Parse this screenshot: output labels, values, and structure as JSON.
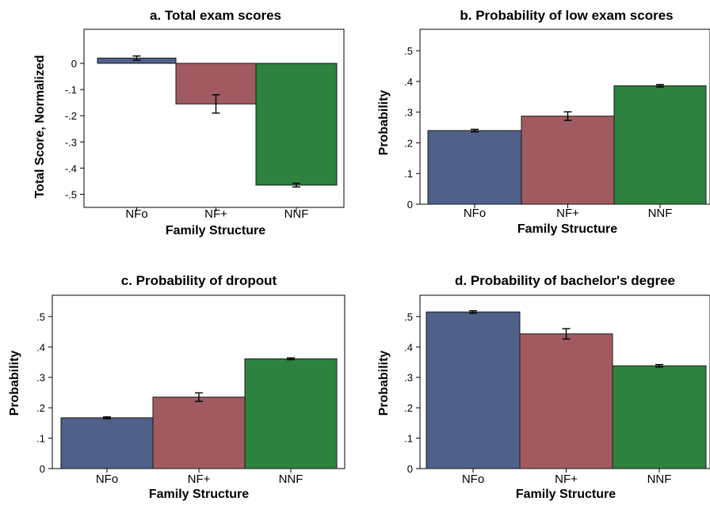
{
  "chart_data": [
    {
      "type": "bar",
      "title": "a. Total exam scores",
      "xlabel": "Family Structure",
      "ylabel": "Total Score, Normalized",
      "categories": [
        "NFo",
        "NF+",
        "NNF"
      ],
      "values": [
        0.02,
        -0.155,
        -0.465
      ],
      "error_low": [
        0.012,
        -0.19,
        -0.472
      ],
      "error_high": [
        0.028,
        -0.12,
        -0.458
      ],
      "ylim": [
        -0.55,
        0.13
      ],
      "yticks": [
        0,
        -0.1,
        -0.2,
        -0.3,
        -0.4,
        -0.5
      ],
      "ytick_labels": [
        "0",
        "-.1",
        "-.2",
        "-.3",
        "-.4",
        "-.5"
      ],
      "colors": [
        "#4f6089",
        "#a15b60",
        "#2d823f"
      ]
    },
    {
      "type": "bar",
      "title": "b. Probability of low exam scores",
      "xlabel": "Family Structure",
      "ylabel": "Probability",
      "categories": [
        "NFo",
        "NF+",
        "NNF"
      ],
      "values": [
        0.24,
        0.287,
        0.386
      ],
      "error_low": [
        0.236,
        0.273,
        0.382
      ],
      "error_high": [
        0.244,
        0.301,
        0.39
      ],
      "ylim": [
        0,
        0.57
      ],
      "yticks": [
        0,
        0.1,
        0.2,
        0.3,
        0.4,
        0.5
      ],
      "ytick_labels": [
        "0",
        ".1",
        ".2",
        ".3",
        ".4",
        ".5"
      ],
      "colors": [
        "#4f6089",
        "#a15b60",
        "#2d823f"
      ]
    },
    {
      "type": "bar",
      "title": "c. Probability of dropout",
      "xlabel": "Family Structure",
      "ylabel": "Probability",
      "categories": [
        "NFo",
        "NF+",
        "NNF"
      ],
      "values": [
        0.167,
        0.235,
        0.361
      ],
      "error_low": [
        0.164,
        0.221,
        0.358
      ],
      "error_high": [
        0.17,
        0.249,
        0.364
      ],
      "ylim": [
        0,
        0.57
      ],
      "yticks": [
        0,
        0.1,
        0.2,
        0.3,
        0.4,
        0.5
      ],
      "ytick_labels": [
        "0",
        ".1",
        ".2",
        ".3",
        ".4",
        ".5"
      ],
      "colors": [
        "#4f6089",
        "#a15b60",
        "#2d823f"
      ]
    },
    {
      "type": "bar",
      "title": "d. Probability of bachelor's degree",
      "xlabel": "Family Structure",
      "ylabel": "Probability",
      "categories": [
        "NFo",
        "NF+",
        "NNF"
      ],
      "values": [
        0.515,
        0.443,
        0.338
      ],
      "error_low": [
        0.511,
        0.426,
        0.334
      ],
      "error_high": [
        0.519,
        0.46,
        0.342
      ],
      "ylim": [
        0,
        0.57
      ],
      "yticks": [
        0,
        0.1,
        0.2,
        0.3,
        0.4,
        0.5
      ],
      "ytick_labels": [
        "0",
        ".1",
        ".2",
        ".3",
        ".4",
        ".5"
      ],
      "colors": [
        "#4f6089",
        "#a15b60",
        "#2d823f"
      ]
    }
  ]
}
